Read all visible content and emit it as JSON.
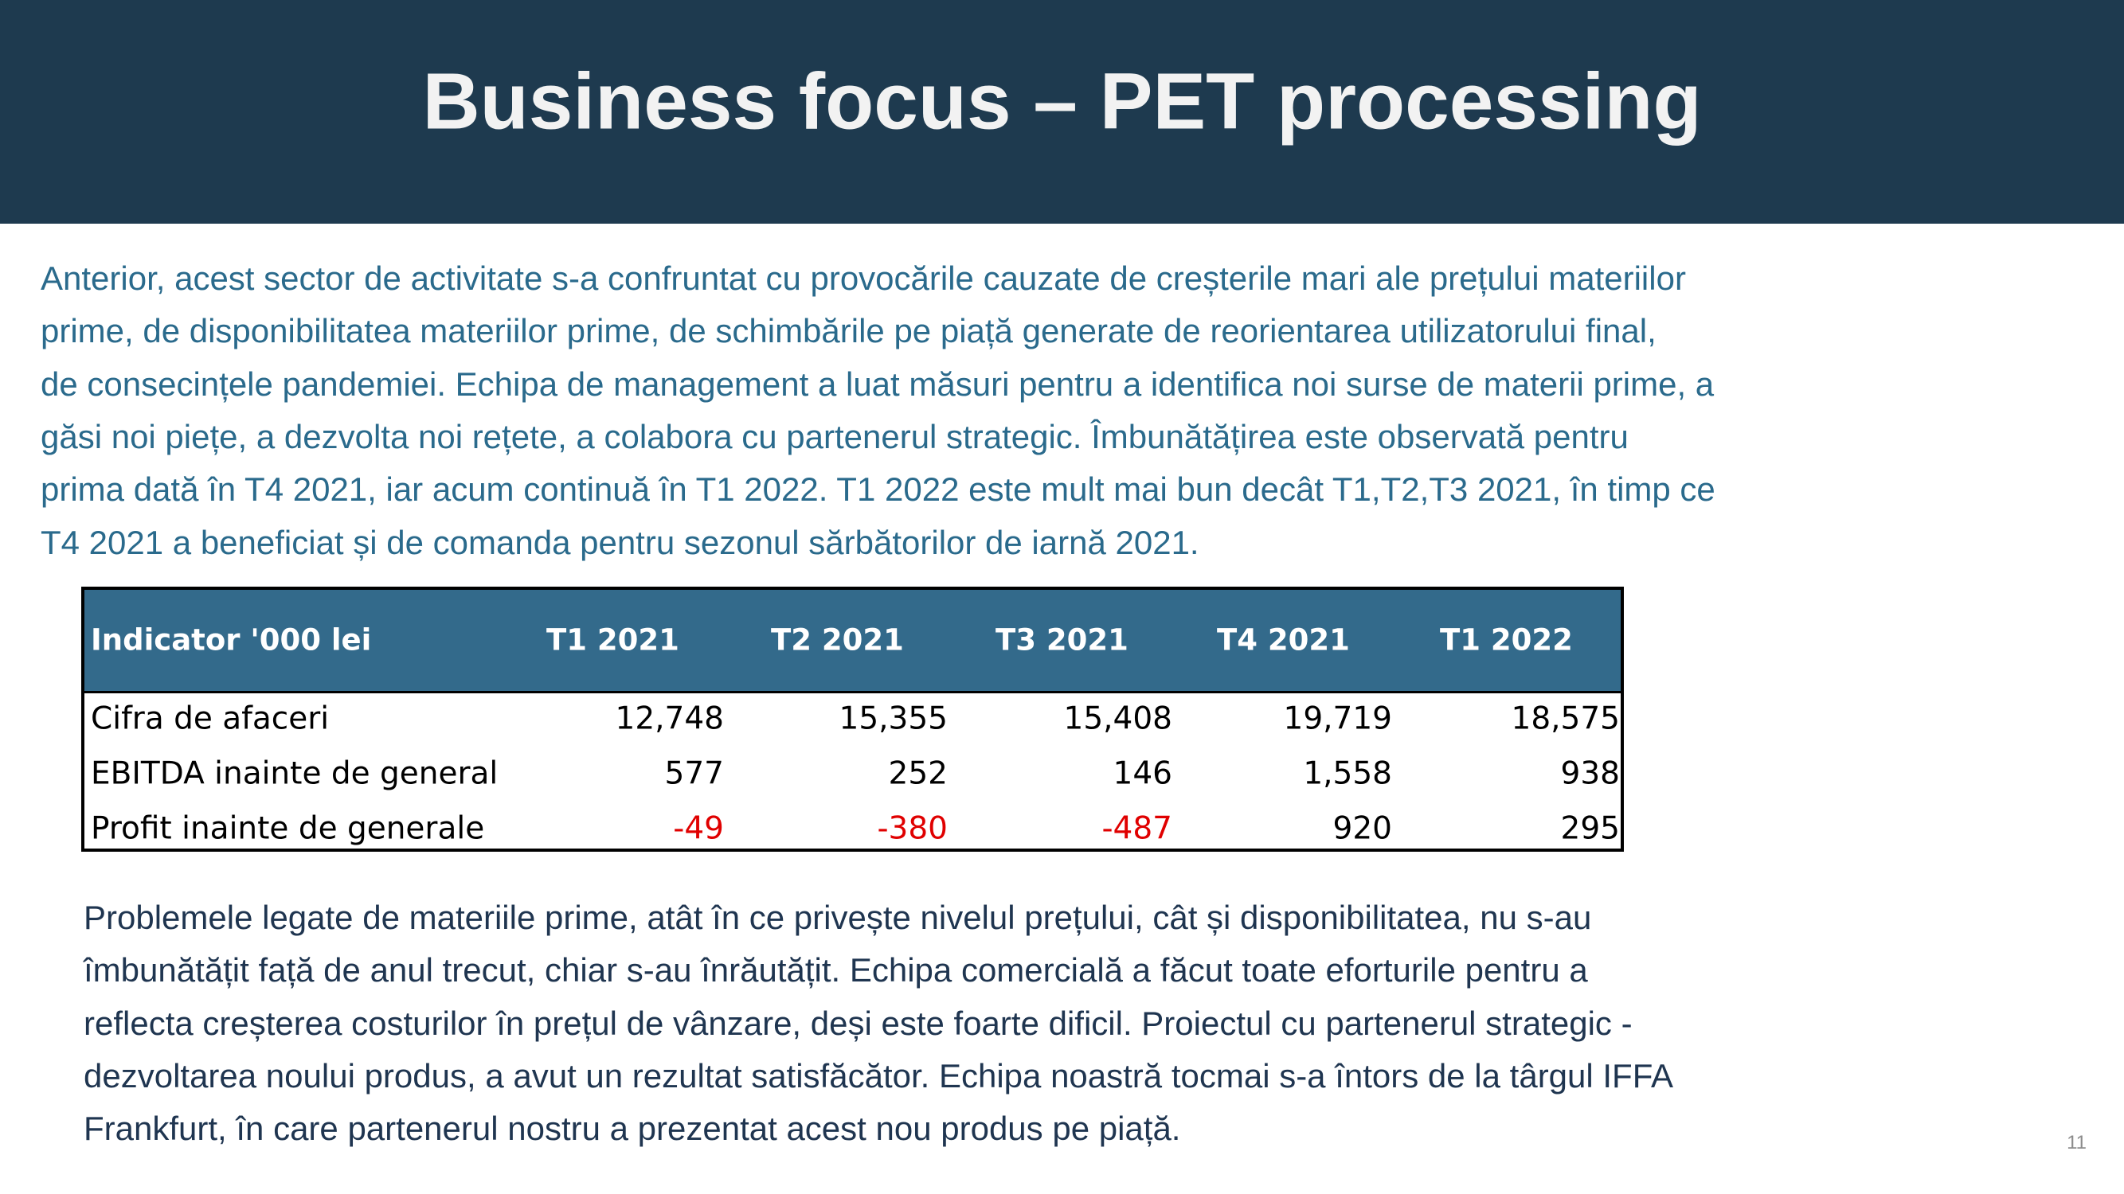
{
  "header": {
    "title": "Business focus – PET processing"
  },
  "intro": [
    "Anterior, acest sector de activitate s-a confruntat cu provocările cauzate de creșterile mari ale prețului materiilor",
    "prime, de disponibilitatea materiilor prime, de schimbările pe piață generate de reorientarea utilizatorului final,",
    "de consecințele pandemiei. Echipa de management a luat măsuri pentru a identifica noi surse de materii prime, a",
    "găsi noi piețe, a dezvolta noi rețete, a colabora cu partenerul strategic. Îmbunătățirea este observată pentru",
    "prima dată în T4 2021, iar acum continuă în T1 2022. T1 2022 este mult mai bun decât T1,T2,T3 2021, în timp ce",
    "T4 2021 a beneficiat și de comanda pentru sezonul sărbătorilor de iarnă 2021."
  ],
  "table": {
    "header": [
      "Indicator '000 lei",
      "T1 2021",
      "T2 2021",
      "T3 2021",
      "T4 2021",
      "T1 2022"
    ],
    "rows": [
      [
        "Cifra de afaceri",
        "12,748",
        "15,355",
        "15,408",
        "19,719",
        "18,575"
      ],
      [
        "EBITDA inainte de general",
        "577",
        "252",
        "146",
        "1,558",
        "938"
      ],
      [
        "Profit inainte de generale",
        "-49",
        "-380",
        "-487",
        "920",
        "295"
      ]
    ]
  },
  "outro": [
    "Problemele legate de materiile prime, atât în ce privește nivelul prețului, cât și disponibilitatea, nu s-au",
    "îmbunătățit față de anul trecut, chiar s-au înrăutățit. Echipa comercială a făcut toate eforturile pentru a",
    "reflecta creșterea costurilor în prețul de vânzare, deși este foarte dificil. Proiectul cu partenerul strategic -",
    "dezvoltarea noului produs, a avut un rezultat satisfăcător. Echipa noastră tocmai s-a întors de la târgul IFFA",
    "Frankfurt, în care partenerul nostru a prezentat acest nou produs pe piață."
  ],
  "page_number": "11"
}
